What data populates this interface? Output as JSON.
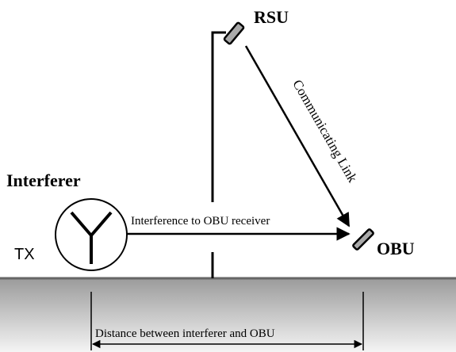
{
  "labels": {
    "rsu": "RSU",
    "link": "Communicating Link",
    "interferer": "Interferer",
    "interference": "Interference to OBU receiver",
    "tx": "TX",
    "obu": "OBU",
    "distance": "Distance between interferer and  OBU"
  }
}
